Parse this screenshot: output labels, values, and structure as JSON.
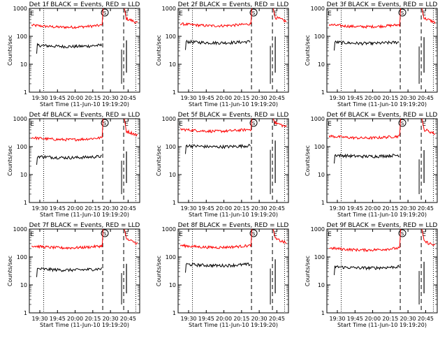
{
  "figure": {
    "ylabel": "Counts/sec",
    "xlabel": "Start Time (11-Jun-10 19:19:20)",
    "y_ticks": [
      "1",
      "10",
      "100",
      "1000"
    ],
    "ylim": [
      1,
      1000
    ],
    "y_scale": "log",
    "colors": {
      "events": "#000000",
      "lld": "#ff0000"
    },
    "markers": [
      "S",
      "E"
    ],
    "x_ticks_a": [
      "19:30",
      "19:45",
      "20:00",
      "20:15",
      "20:30",
      "20:45"
    ],
    "x_ticks_b": [
      "19:30",
      "19:45",
      "20:00",
      "20:15",
      "20:30",
      "20:45"
    ]
  },
  "chart_data": [
    {
      "type": "line",
      "title": "Det 1f BLACK = Events, RED = LLD",
      "xticks": [
        "19:30",
        "19:45",
        "20:00",
        "20:15",
        "20:30",
        "20:45"
      ],
      "series": [
        {
          "name": "LLD",
          "level": 250
        },
        {
          "name": "Events",
          "level": 48
        }
      ],
      "ylim": [
        1,
        1000
      ],
      "xlabel": "Start Time (11-Jun-10 19:19:20)",
      "ylabel": "Counts/sec"
    },
    {
      "type": "line",
      "title": "Det 2f BLACK = Events, RED = LLD",
      "xticks": [
        "19:30",
        "19:45",
        "20:00",
        "20:15",
        "20:30",
        "20:45"
      ],
      "series": [
        {
          "name": "LLD",
          "level": 280
        },
        {
          "name": "Events",
          "level": 65
        }
      ],
      "ylim": [
        1,
        1000
      ],
      "xlabel": "Start Time (11-Jun-10 19:19:20)",
      "ylabel": "Counts/sec"
    },
    {
      "type": "line",
      "title": "Det 3f BLACK = Events, RED = LLD",
      "xticks": [
        "19:30",
        "19:45",
        "20:00",
        "20:15",
        "20:30",
        "20:45"
      ],
      "series": [
        {
          "name": "LLD",
          "level": 260
        },
        {
          "name": "Events",
          "level": 62
        }
      ],
      "ylim": [
        1,
        1000
      ],
      "xlabel": "Start Time (11-Jun-10 19:19:20)",
      "ylabel": "Counts/sec"
    },
    {
      "type": "line",
      "title": "Det 4f BLACK = Events, RED = LLD",
      "xticks": [
        "19:30",
        "19:45",
        "20:00",
        "20:15",
        "20:30",
        "20:45"
      ],
      "series": [
        {
          "name": "LLD",
          "level": 210
        },
        {
          "name": "Events",
          "level": 45
        }
      ],
      "ylim": [
        1,
        1000
      ],
      "xlabel": "Start Time (11-Jun-10 19:19:20)",
      "ylabel": "Counts/sec"
    },
    {
      "type": "line",
      "title": "Det 5f BLACK = Events, RED = LLD",
      "xticks": [
        "19:30",
        "19:45",
        "20:00",
        "20:15",
        "20:30",
        "20:45"
      ],
      "series": [
        {
          "name": "LLD",
          "level": 420
        },
        {
          "name": "Events",
          "level": 110
        }
      ],
      "ylim": [
        1,
        1000
      ],
      "xlabel": "Start Time (11-Jun-10 19:19:20)",
      "ylabel": "Counts/sec"
    },
    {
      "type": "line",
      "title": "Det 6f BLACK = Events, RED = LLD",
      "xticks": [
        "19:30",
        "19:45",
        "20:00",
        "20:15",
        "20:30",
        "20:45"
      ],
      "series": [
        {
          "name": "LLD",
          "level": 240
        },
        {
          "name": "Events",
          "level": 50
        }
      ],
      "ylim": [
        1,
        1000
      ],
      "xlabel": "Start Time (11-Jun-10 19:19:20)",
      "ylabel": "Counts/sec"
    },
    {
      "type": "line",
      "title": "Det 7f BLACK = Events, RED = LLD",
      "xticks": [
        "19:30",
        "19:45",
        "20:00",
        "20:15",
        "20:30",
        "20:45"
      ],
      "series": [
        {
          "name": "LLD",
          "level": 250
        },
        {
          "name": "Events",
          "level": 38
        }
      ],
      "ylim": [
        1,
        1000
      ],
      "xlabel": "Start Time (11-Jun-10 19:19:20)",
      "ylabel": "Counts/sec"
    },
    {
      "type": "line",
      "title": "Det 8f BLACK = Events, RED = LLD",
      "xticks": [
        "19:30",
        "19:45",
        "20:00",
        "20:15",
        "20:30",
        "20:45"
      ],
      "series": [
        {
          "name": "LLD",
          "level": 260
        },
        {
          "name": "Events",
          "level": 55
        }
      ],
      "ylim": [
        1,
        1000
      ],
      "xlabel": "Start Time (11-Jun-10 19:19:20)",
      "ylabel": "Counts/sec"
    },
    {
      "type": "line",
      "title": "Det 9f BLACK = Events, RED = LLD",
      "xticks": [
        "19:30",
        "19:45",
        "20:00",
        "20:15",
        "20:30",
        "20:45"
      ],
      "series": [
        {
          "name": "LLD",
          "level": 210
        },
        {
          "name": "Events",
          "level": 45
        }
      ],
      "ylim": [
        1,
        1000
      ],
      "xlabel": "Start Time (11-Jun-10 19:19:20)",
      "ylabel": "Counts/sec"
    }
  ]
}
